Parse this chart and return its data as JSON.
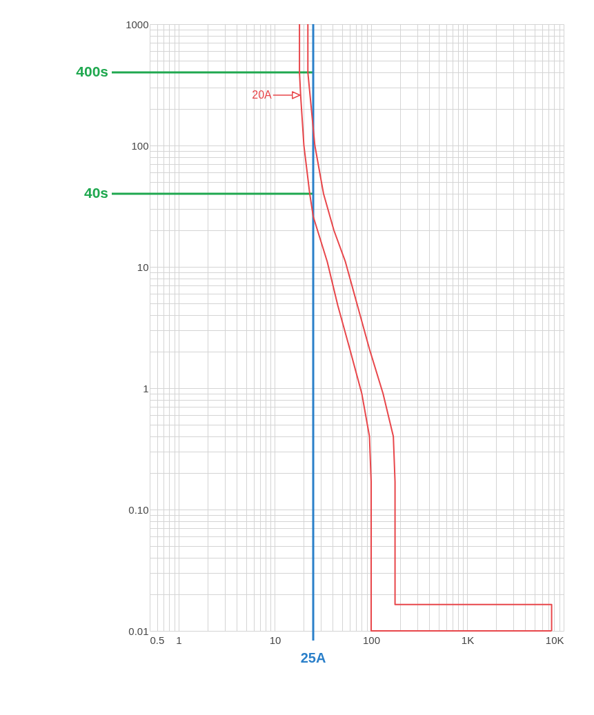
{
  "chart_data": {
    "type": "line",
    "series": [
      {
        "color": "#e8464a",
        "x": [
          18,
          18,
          18.5,
          20,
          23,
          25,
          35,
          45,
          60,
          80,
          96,
          100,
          100,
          7500
        ],
        "values": [
          1000,
          400,
          260,
          100,
          40,
          26,
          11,
          4.8,
          2.1,
          0.9,
          0.4,
          0.17,
          0.01,
          0.01
        ]
      },
      {
        "color": "#e8464a",
        "x": [
          22,
          22,
          26,
          32,
          41,
          54,
          72,
          96,
          133,
          170,
          177,
          177,
          7500,
          7500
        ],
        "values": [
          1000,
          400,
          100,
          40,
          20,
          11,
          4.8,
          2.1,
          0.9,
          0.4,
          0.17,
          0.0165,
          0.0165,
          0.01
        ]
      }
    ],
    "xlim": [
      0.5,
      10000
    ],
    "ylim": [
      0.01,
      1000
    ],
    "log": "xy",
    "grid": true,
    "xticks": [
      0.5,
      {
        "value": 0.6,
        "label": null
      },
      {
        "value": 0.7,
        "label": null
      },
      {
        "value": 0.8,
        "label": null
      },
      {
        "value": 0.9,
        "label": null
      },
      1,
      {
        "value": 2,
        "label": null
      },
      {
        "value": 3,
        "label": null
      },
      {
        "value": 4,
        "label": null
      },
      {
        "value": 5,
        "label": null
      },
      {
        "value": 6,
        "label": null
      },
      {
        "value": 7,
        "label": null
      },
      {
        "value": 8,
        "label": null
      },
      {
        "value": 9,
        "label": null
      },
      10,
      {
        "value": 20,
        "label": null
      },
      {
        "value": 30,
        "label": null
      },
      {
        "value": 40,
        "label": null
      },
      {
        "value": 50,
        "label": null
      },
      {
        "value": 60,
        "label": null
      },
      {
        "value": 70,
        "label": null
      },
      {
        "value": 80,
        "label": null
      },
      {
        "value": 90,
        "label": null
      },
      100,
      {
        "value": 200,
        "label": null
      },
      {
        "value": 300,
        "label": null
      },
      {
        "value": 400,
        "label": null
      },
      {
        "value": 500,
        "label": null
      },
      {
        "value": 600,
        "label": null
      },
      {
        "value": 700,
        "label": null
      },
      {
        "value": 800,
        "label": null
      },
      {
        "value": 900,
        "label": null
      },
      {
        "value": 1000,
        "label": "1K"
      },
      {
        "value": 2000,
        "label": null
      },
      {
        "value": 3000,
        "label": null
      },
      {
        "value": 4000,
        "label": null
      },
      {
        "value": 5000,
        "label": null
      },
      {
        "value": 6000,
        "label": null
      },
      {
        "value": 7000,
        "label": null
      },
      {
        "value": 8000,
        "label": null
      },
      {
        "value": 9000,
        "label": null
      },
      {
        "value": 10000,
        "label": "10K"
      }
    ],
    "yticks": [
      0.01,
      {
        "value": 0.02,
        "label": null
      },
      {
        "value": 0.03,
        "label": null
      },
      {
        "value": 0.04,
        "label": null
      },
      {
        "value": 0.05,
        "label": null
      },
      {
        "value": 0.06,
        "label": null
      },
      {
        "value": 0.07,
        "label": null
      },
      {
        "value": 0.08,
        "label": null
      },
      {
        "value": 0.09,
        "label": null
      },
      {
        "value": 0.1,
        "label": "0.10"
      },
      {
        "value": 0.2,
        "label": null
      },
      {
        "value": 0.3,
        "label": null
      },
      {
        "value": 0.4,
        "label": null
      },
      {
        "value": 0.5,
        "label": null
      },
      {
        "value": 0.6,
        "label": null
      },
      {
        "value": 0.7,
        "label": null
      },
      {
        "value": 0.8,
        "label": null
      },
      {
        "value": 0.9,
        "label": null
      },
      1,
      {
        "value": 2,
        "label": null
      },
      {
        "value": 3,
        "label": null
      },
      {
        "value": 4,
        "label": null
      },
      {
        "value": 5,
        "label": null
      },
      {
        "value": 6,
        "label": null
      },
      {
        "value": 7,
        "label": null
      },
      {
        "value": 8,
        "label": null
      },
      {
        "value": 9,
        "label": null
      },
      10,
      {
        "value": 20,
        "label": null
      },
      {
        "value": 30,
        "label": null
      },
      {
        "value": 40,
        "label": null
      },
      {
        "value": 50,
        "label": null
      },
      {
        "value": 60,
        "label": null
      },
      {
        "value": 70,
        "label": null
      },
      {
        "value": 80,
        "label": null
      },
      {
        "value": 90,
        "label": null
      },
      100,
      {
        "value": 200,
        "label": null
      },
      {
        "value": 300,
        "label": null
      },
      {
        "value": 400,
        "label": null
      },
      {
        "value": 500,
        "label": null
      },
      {
        "value": 600,
        "label": null
      },
      {
        "value": 700,
        "label": null
      },
      {
        "value": 800,
        "label": null
      },
      {
        "value": 900,
        "label": null
      },
      1000
    ],
    "ref_lines": [
      {
        "axis": "y",
        "value": 400,
        "label": "400s",
        "color": "#1fa84f"
      },
      {
        "axis": "y",
        "value": 40,
        "label": "40s",
        "color": "#1fa84f"
      },
      {
        "axis": "x",
        "value": 25,
        "label": "25A",
        "color": "#2a7fc9"
      }
    ],
    "annotations": [
      {
        "text": "20A",
        "x": 18.5,
        "y": 260
      }
    ]
  }
}
